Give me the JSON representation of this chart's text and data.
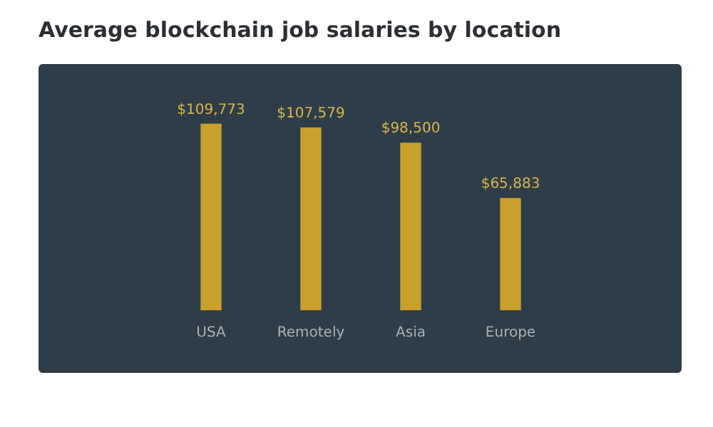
{
  "chart_data": {
    "type": "bar",
    "title": "Average blockchain job salaries by location",
    "categories": [
      "USA",
      "Remotely",
      "Asia",
      "Europe"
    ],
    "values": [
      109773,
      107579,
      98500,
      65883
    ],
    "value_labels": [
      "$109,773",
      "$107,579",
      "$98,500",
      "$65,883"
    ],
    "color": "#c9a02c",
    "grid": false,
    "legend": false
  }
}
